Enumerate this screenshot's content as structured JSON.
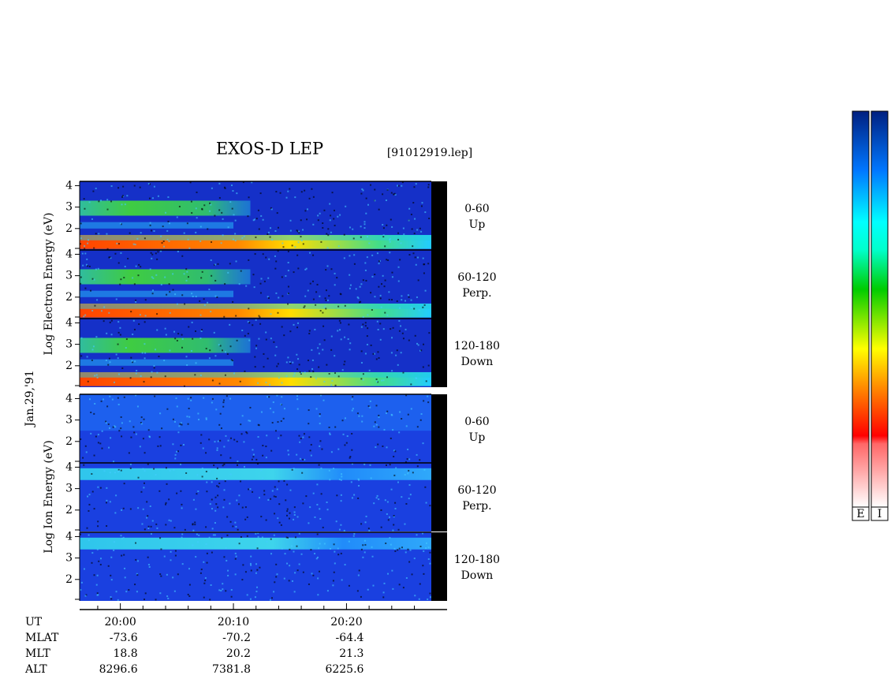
{
  "chart_data": {
    "type": "spectrogram",
    "title": "EXOS-D LEP",
    "file": "[91012919.lep]",
    "date": "Jan.29,'91",
    "groups": [
      {
        "ylabel": "Log Electron Energy (eV)",
        "species": "electron",
        "panels": [
          {
            "range": "0-60",
            "direction": "Up"
          },
          {
            "range": "60-120",
            "direction": "Perp."
          },
          {
            "range": "120-180",
            "direction": "Down"
          }
        ]
      },
      {
        "ylabel": "Log Ion Energy (eV)",
        "species": "ion",
        "panels": [
          {
            "range": "0-60",
            "direction": "Up"
          },
          {
            "range": "60-120",
            "direction": "Perp."
          },
          {
            "range": "120-180",
            "direction": "Down"
          }
        ]
      }
    ],
    "ylim": [
      1,
      4.2
    ],
    "yticks": [
      2,
      3,
      4
    ],
    "xlim": [
      1196.4,
      1227.5
    ],
    "xticks": [
      {
        "value": 1200,
        "label": "20:00"
      },
      {
        "value": 1210,
        "label": "20:10"
      },
      {
        "value": 1220,
        "label": "20:20"
      }
    ],
    "xminorticks": [
      1198,
      1202,
      1204,
      1206,
      1208,
      1212,
      1214,
      1216,
      1218,
      1222,
      1224,
      1226
    ],
    "xlabel": "UT",
    "rows": [
      {
        "name": "MLAT",
        "values": [
          -73.6,
          -70.2,
          -64.4
        ]
      },
      {
        "name": "MLT",
        "values": [
          18.8,
          20.2,
          21.3
        ]
      },
      {
        "name": "ALT",
        "values": [
          8296.6,
          7381.8,
          6225.6
        ]
      }
    ],
    "colorbars": [
      "E",
      "I"
    ]
  }
}
